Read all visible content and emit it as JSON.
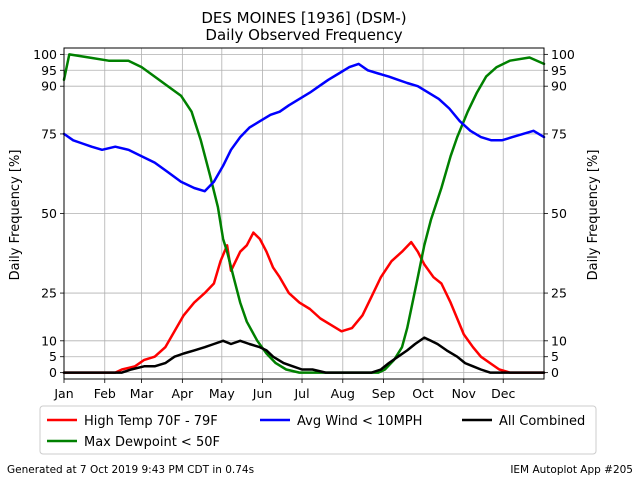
{
  "chart_data": {
    "type": "line",
    "title": "DES MOINES [1936] (DSM-)",
    "subtitle": "Daily Observed Frequency",
    "xlabel": "",
    "ylabel": "Daily Frequency [%]",
    "ylabel_right": "Daily Frequency [%]",
    "xlim": [
      1,
      366
    ],
    "ylim": [
      -2,
      102
    ],
    "x_ticks": [
      {
        "day": 1,
        "label": "Jan"
      },
      {
        "day": 32,
        "label": "Feb"
      },
      {
        "day": 60,
        "label": "Mar"
      },
      {
        "day": 91,
        "label": "Apr"
      },
      {
        "day": 121,
        "label": "May"
      },
      {
        "day": 152,
        "label": "Jun"
      },
      {
        "day": 182,
        "label": "Jul"
      },
      {
        "day": 213,
        "label": "Aug"
      },
      {
        "day": 244,
        "label": "Sep"
      },
      {
        "day": 274,
        "label": "Oct"
      },
      {
        "day": 305,
        "label": "Nov"
      },
      {
        "day": 335,
        "label": "Dec"
      }
    ],
    "y_ticks": [
      0,
      5,
      10,
      25,
      50,
      75,
      90,
      95,
      100
    ],
    "grid": true,
    "legend_position": "bottom",
    "series": [
      {
        "name": "High Temp 70F - 79F",
        "color": "#ff0000",
        "values": [
          [
            1,
            0
          ],
          [
            40,
            0
          ],
          [
            45,
            1
          ],
          [
            55,
            2
          ],
          [
            62,
            4
          ],
          [
            70,
            5
          ],
          [
            78,
            8
          ],
          [
            85,
            13
          ],
          [
            92,
            18
          ],
          [
            100,
            22
          ],
          [
            108,
            25
          ],
          [
            115,
            28
          ],
          [
            120,
            35
          ],
          [
            125,
            40
          ],
          [
            128,
            32
          ],
          [
            135,
            38
          ],
          [
            140,
            40
          ],
          [
            145,
            44
          ],
          [
            150,
            42
          ],
          [
            155,
            38
          ],
          [
            160,
            33
          ],
          [
            165,
            30
          ],
          [
            172,
            25
          ],
          [
            180,
            22
          ],
          [
            188,
            20
          ],
          [
            196,
            17
          ],
          [
            204,
            15
          ],
          [
            212,
            13
          ],
          [
            220,
            14
          ],
          [
            228,
            18
          ],
          [
            235,
            24
          ],
          [
            242,
            30
          ],
          [
            250,
            35
          ],
          [
            258,
            38
          ],
          [
            265,
            41
          ],
          [
            270,
            38
          ],
          [
            275,
            34
          ],
          [
            282,
            30
          ],
          [
            288,
            28
          ],
          [
            295,
            22
          ],
          [
            300,
            17
          ],
          [
            305,
            12
          ],
          [
            312,
            8
          ],
          [
            318,
            5
          ],
          [
            325,
            3
          ],
          [
            332,
            1
          ],
          [
            340,
            0
          ],
          [
            366,
            0
          ]
        ]
      },
      {
        "name": "Max Dewpoint < 50F",
        "color": "#008000",
        "values": [
          [
            1,
            92
          ],
          [
            5,
            100
          ],
          [
            20,
            99
          ],
          [
            35,
            98
          ],
          [
            50,
            98
          ],
          [
            60,
            96
          ],
          [
            70,
            93
          ],
          [
            80,
            90
          ],
          [
            90,
            87
          ],
          [
            98,
            82
          ],
          [
            105,
            73
          ],
          [
            112,
            62
          ],
          [
            118,
            52
          ],
          [
            122,
            42
          ],
          [
            125,
            38
          ],
          [
            130,
            30
          ],
          [
            135,
            22
          ],
          [
            140,
            16
          ],
          [
            148,
            10
          ],
          [
            155,
            6
          ],
          [
            162,
            3
          ],
          [
            170,
            1
          ],
          [
            180,
            0
          ],
          [
            240,
            0
          ],
          [
            245,
            1
          ],
          [
            252,
            4
          ],
          [
            258,
            8
          ],
          [
            262,
            14
          ],
          [
            265,
            20
          ],
          [
            270,
            30
          ],
          [
            275,
            40
          ],
          [
            280,
            48
          ],
          [
            288,
            58
          ],
          [
            295,
            68
          ],
          [
            300,
            74
          ],
          [
            308,
            82
          ],
          [
            315,
            88
          ],
          [
            322,
            93
          ],
          [
            330,
            96
          ],
          [
            340,
            98
          ],
          [
            355,
            99
          ],
          [
            366,
            97
          ]
        ]
      },
      {
        "name": "Avg Wind < 10MPH",
        "color": "#0000ff",
        "values": [
          [
            1,
            75
          ],
          [
            8,
            73
          ],
          [
            15,
            72
          ],
          [
            22,
            71
          ],
          [
            30,
            70
          ],
          [
            40,
            71
          ],
          [
            50,
            70
          ],
          [
            60,
            68
          ],
          [
            70,
            66
          ],
          [
            80,
            63
          ],
          [
            90,
            60
          ],
          [
            100,
            58
          ],
          [
            108,
            57
          ],
          [
            115,
            60
          ],
          [
            122,
            65
          ],
          [
            128,
            70
          ],
          [
            135,
            74
          ],
          [
            142,
            77
          ],
          [
            150,
            79
          ],
          [
            158,
            81
          ],
          [
            165,
            82
          ],
          [
            172,
            84
          ],
          [
            180,
            86
          ],
          [
            188,
            88
          ],
          [
            195,
            90
          ],
          [
            202,
            92
          ],
          [
            210,
            94
          ],
          [
            218,
            96
          ],
          [
            225,
            97
          ],
          [
            232,
            95
          ],
          [
            240,
            94
          ],
          [
            248,
            93
          ],
          [
            255,
            92
          ],
          [
            262,
            91
          ],
          [
            270,
            90
          ],
          [
            278,
            88
          ],
          [
            286,
            86
          ],
          [
            294,
            83
          ],
          [
            302,
            79
          ],
          [
            310,
            76
          ],
          [
            318,
            74
          ],
          [
            326,
            73
          ],
          [
            334,
            73
          ],
          [
            342,
            74
          ],
          [
            350,
            75
          ],
          [
            358,
            76
          ],
          [
            366,
            74
          ]
        ]
      },
      {
        "name": "All Combined",
        "color": "#000000",
        "values": [
          [
            1,
            0
          ],
          [
            45,
            0
          ],
          [
            52,
            1
          ],
          [
            62,
            2
          ],
          [
            70,
            2
          ],
          [
            78,
            3
          ],
          [
            85,
            5
          ],
          [
            92,
            6
          ],
          [
            100,
            7
          ],
          [
            108,
            8
          ],
          [
            115,
            9
          ],
          [
            122,
            10
          ],
          [
            128,
            9
          ],
          [
            135,
            10
          ],
          [
            142,
            9
          ],
          [
            150,
            8
          ],
          [
            155,
            7
          ],
          [
            160,
            5
          ],
          [
            168,
            3
          ],
          [
            175,
            2
          ],
          [
            182,
            1
          ],
          [
            190,
            1
          ],
          [
            200,
            0
          ],
          [
            235,
            0
          ],
          [
            242,
            1
          ],
          [
            248,
            3
          ],
          [
            255,
            5
          ],
          [
            262,
            7
          ],
          [
            268,
            9
          ],
          [
            275,
            11
          ],
          [
            280,
            10
          ],
          [
            285,
            9
          ],
          [
            292,
            7
          ],
          [
            300,
            5
          ],
          [
            306,
            3
          ],
          [
            312,
            2
          ],
          [
            318,
            1
          ],
          [
            325,
            0
          ],
          [
            366,
            0
          ]
        ]
      }
    ]
  },
  "legend": {
    "items": [
      {
        "label": "High Temp 70F - 79F",
        "color": "#ff0000"
      },
      {
        "label": "Avg Wind < 10MPH",
        "color": "#0000ff"
      },
      {
        "label": "All Combined",
        "color": "#000000"
      },
      {
        "label": "Max Dewpoint < 50F",
        "color": "#008000"
      }
    ]
  },
  "footer": {
    "left": "Generated at 7 Oct 2019 9:43 PM CDT in 0.74s",
    "right": "IEM Autoplot App #205"
  }
}
